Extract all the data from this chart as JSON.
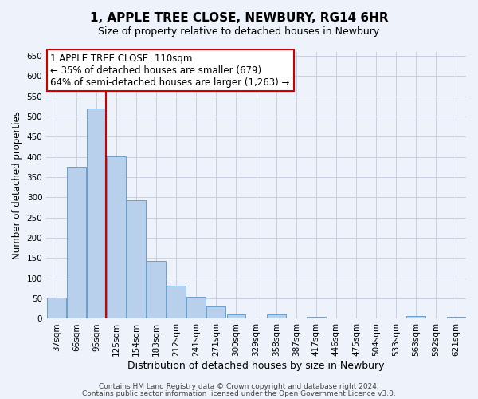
{
  "title1": "1, APPLE TREE CLOSE, NEWBURY, RG14 6HR",
  "title2": "Size of property relative to detached houses in Newbury",
  "xlabel": "Distribution of detached houses by size in Newbury",
  "ylabel": "Number of detached properties",
  "bar_labels": [
    "37sqm",
    "66sqm",
    "95sqm",
    "125sqm",
    "154sqm",
    "183sqm",
    "212sqm",
    "241sqm",
    "271sqm",
    "300sqm",
    "329sqm",
    "358sqm",
    "387sqm",
    "417sqm",
    "446sqm",
    "475sqm",
    "504sqm",
    "533sqm",
    "563sqm",
    "592sqm",
    "621sqm"
  ],
  "bar_values": [
    52,
    375,
    520,
    402,
    292,
    143,
    82,
    55,
    30,
    10,
    0,
    11,
    0,
    5,
    0,
    0,
    0,
    0,
    6,
    0,
    5
  ],
  "bar_color": "#b8d0ec",
  "bar_edge_color": "#6a9fcc",
  "vline_color": "#cc0000",
  "annotation_line1": "1 APPLE TREE CLOSE: 110sqm",
  "annotation_line2": "← 35% of detached houses are smaller (679)",
  "annotation_line3": "64% of semi-detached houses are larger (1,263) →",
  "annotation_box_color": "#ffffff",
  "annotation_box_edge": "#cc0000",
  "ylim": [
    0,
    660
  ],
  "yticks": [
    0,
    50,
    100,
    150,
    200,
    250,
    300,
    350,
    400,
    450,
    500,
    550,
    600,
    650
  ],
  "footer1": "Contains HM Land Registry data © Crown copyright and database right 2024.",
  "footer2": "Contains public sector information licensed under the Open Government Licence v3.0.",
  "bg_color": "#eef2fb",
  "grid_color": "#c8d0e0",
  "title1_fontsize": 11,
  "title2_fontsize": 9,
  "tick_fontsize": 7.5,
  "ylabel_fontsize": 8.5,
  "xlabel_fontsize": 9,
  "annotation_fontsize": 8.5,
  "footer_fontsize": 6.5
}
